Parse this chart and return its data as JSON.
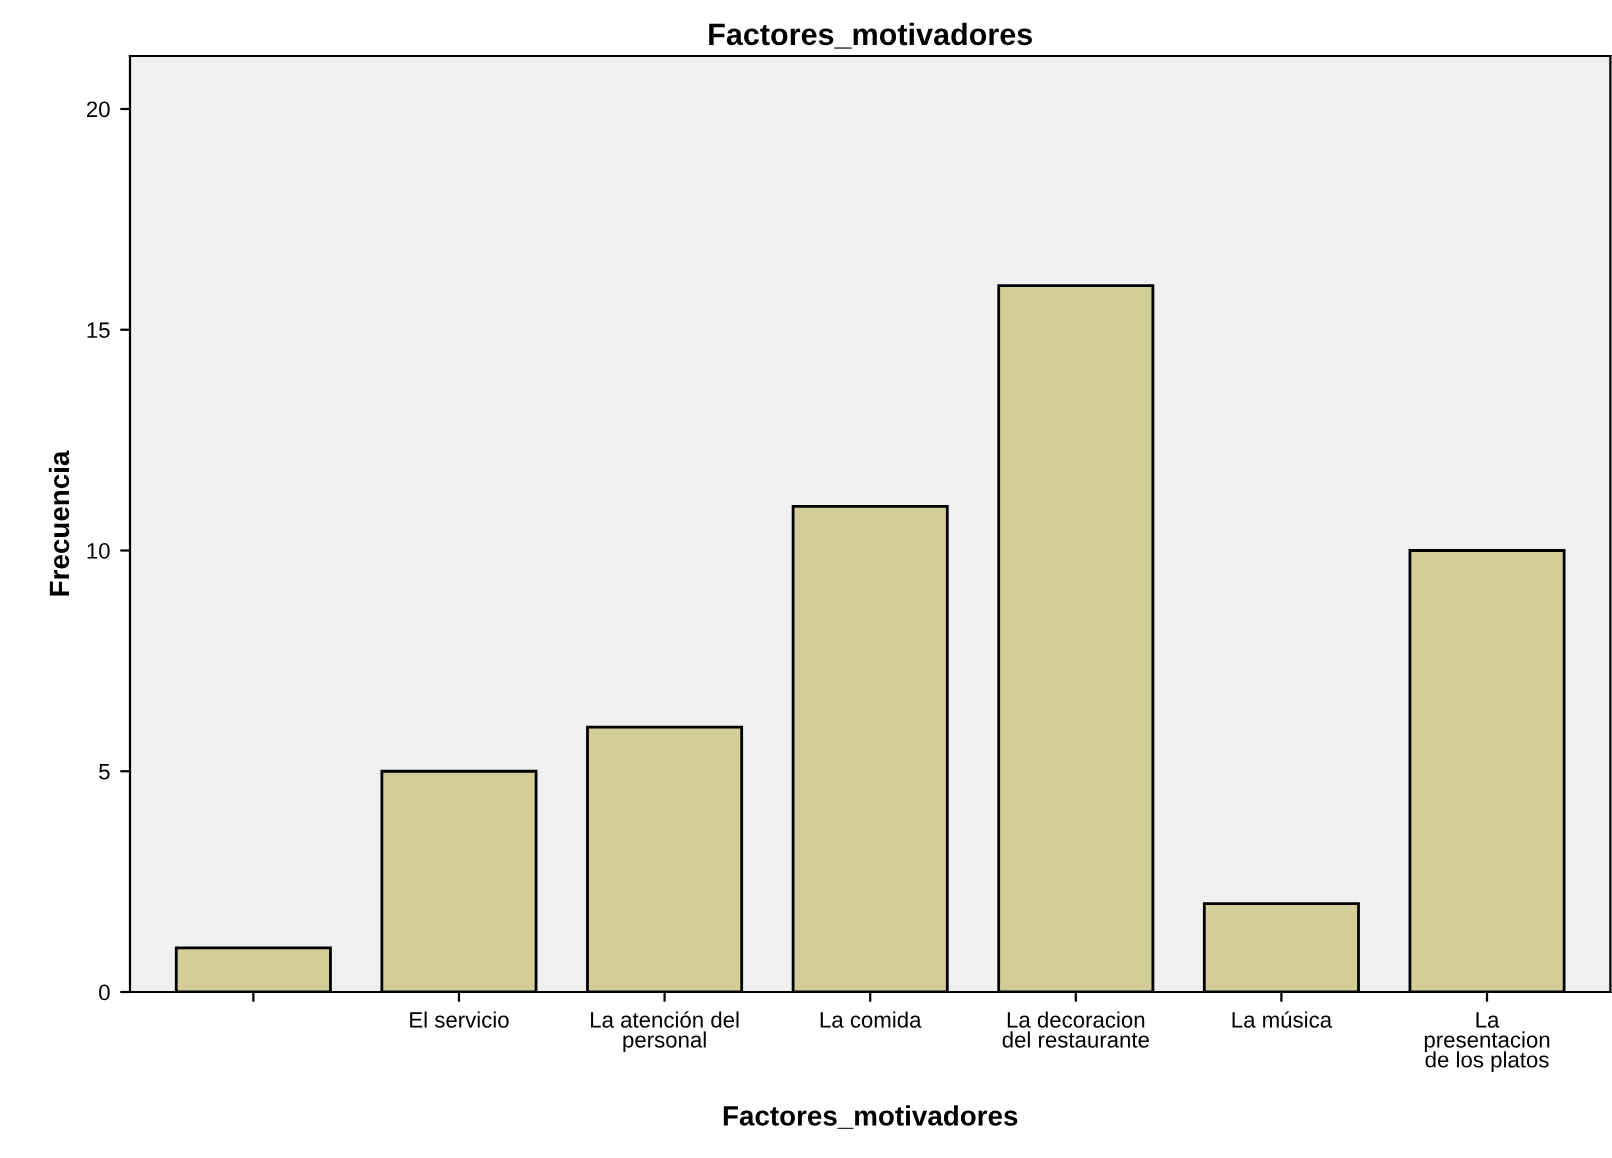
{
  "chart_data": {
    "type": "bar",
    "title": "Factores_motivadores",
    "xlabel": "Factores_motivadores",
    "ylabel": "Frecuencia",
    "categories": [
      null,
      "El servicio",
      "La atención del\npersonal",
      "La comida",
      "La decoracion\ndel restaurante",
      "La música",
      "La\npresentacion\nde los platos"
    ],
    "series": [
      {
        "color": "#d3ce98",
        "values": [
          1,
          5,
          6,
          11,
          16,
          2,
          10
        ]
      }
    ],
    "ylim": [
      0,
      21.2
    ],
    "yticks": [
      0,
      5,
      10,
      15,
      20
    ],
    "grid": false,
    "legend": false
  }
}
